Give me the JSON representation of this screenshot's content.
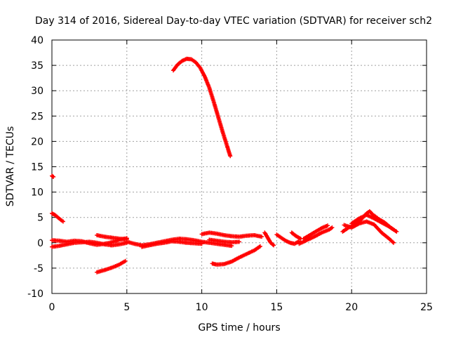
{
  "chart_data": {
    "type": "scatter",
    "title": "Day 314 of 2016, Sidereal Day-to-day VTEC variation (SDTVAR) for receiver sch2",
    "xlabel": "GPS time / hours",
    "ylabel": "SDTVAR / TECUs",
    "xlim": [
      0,
      25
    ],
    "ylim": [
      -10,
      40
    ],
    "x_ticks": [
      0,
      5,
      10,
      15,
      20,
      25
    ],
    "y_ticks": [
      -10,
      -5,
      0,
      5,
      10,
      15,
      20,
      25,
      30,
      35,
      40
    ],
    "grid": true,
    "marker": "+",
    "series_color": "#ff0000",
    "arcs": [
      {
        "name": "arc-01",
        "points": [
          [
            0.0,
            13.2
          ],
          [
            0.1,
            13.0
          ]
        ]
      },
      {
        "name": "arc-02",
        "points": [
          [
            0.0,
            5.8
          ],
          [
            0.2,
            5.5
          ],
          [
            0.4,
            5.0
          ],
          [
            0.6,
            4.5
          ],
          [
            0.75,
            4.2
          ]
        ]
      },
      {
        "name": "arc-03",
        "points": [
          [
            0.0,
            -0.8
          ],
          [
            0.5,
            -0.6
          ],
          [
            1.0,
            -0.3
          ],
          [
            1.5,
            0.0
          ],
          [
            2.0,
            0.1
          ],
          [
            2.5,
            0.2
          ],
          [
            3.0,
            0.0
          ],
          [
            3.5,
            -0.3
          ],
          [
            4.0,
            -0.5
          ],
          [
            4.5,
            -0.3
          ],
          [
            5.0,
            0.0
          ]
        ]
      },
      {
        "name": "arc-04",
        "points": [
          [
            0.0,
            0.5
          ],
          [
            0.5,
            0.4
          ],
          [
            1.0,
            0.2
          ],
          [
            1.5,
            0.4
          ],
          [
            2.0,
            0.3
          ],
          [
            2.5,
            -0.1
          ],
          [
            3.0,
            -0.4
          ],
          [
            3.5,
            -0.2
          ],
          [
            4.0,
            0.1
          ],
          [
            4.5,
            0.6
          ],
          [
            5.0,
            0.9
          ]
        ]
      },
      {
        "name": "arc-05",
        "points": [
          [
            3.0,
            1.5
          ],
          [
            3.5,
            1.2
          ],
          [
            4.0,
            1.0
          ],
          [
            4.5,
            0.8
          ],
          [
            5.0,
            0.7
          ]
        ]
      },
      {
        "name": "arc-06",
        "points": [
          [
            3.0,
            -5.8
          ],
          [
            3.5,
            -5.4
          ],
          [
            4.0,
            -4.9
          ],
          [
            4.5,
            -4.3
          ],
          [
            4.9,
            -3.6
          ]
        ]
      },
      {
        "name": "arc-07",
        "points": [
          [
            5.0,
            0.2
          ],
          [
            5.5,
            -0.2
          ],
          [
            6.0,
            -0.5
          ],
          [
            6.5,
            -0.3
          ],
          [
            7.0,
            0.0
          ],
          [
            7.5,
            0.3
          ],
          [
            8.0,
            0.6
          ],
          [
            8.5,
            0.8
          ],
          [
            9.0,
            0.7
          ],
          [
            9.5,
            0.5
          ],
          [
            10.0,
            0.2
          ],
          [
            10.5,
            0.0
          ],
          [
            11.0,
            -0.2
          ],
          [
            11.5,
            -0.4
          ],
          [
            12.0,
            -0.6
          ]
        ]
      },
      {
        "name": "arc-08",
        "points": [
          [
            6.0,
            -0.8
          ],
          [
            6.5,
            -0.5
          ],
          [
            7.0,
            -0.2
          ],
          [
            7.5,
            0.0
          ],
          [
            8.0,
            0.3
          ],
          [
            8.5,
            0.2
          ],
          [
            9.0,
            0.0
          ],
          [
            9.5,
            -0.1
          ],
          [
            10.0,
            -0.2
          ]
        ]
      },
      {
        "name": "arc-09",
        "points": [
          [
            8.1,
            34.0
          ],
          [
            8.4,
            35.2
          ],
          [
            8.7,
            35.9
          ],
          [
            9.0,
            36.3
          ],
          [
            9.3,
            36.2
          ],
          [
            9.6,
            35.6
          ],
          [
            9.9,
            34.5
          ],
          [
            10.2,
            32.8
          ],
          [
            10.5,
            30.6
          ],
          [
            10.8,
            27.8
          ],
          [
            11.1,
            24.8
          ],
          [
            11.4,
            21.8
          ],
          [
            11.7,
            19.0
          ],
          [
            11.9,
            17.1
          ]
        ]
      },
      {
        "name": "arc-10",
        "points": [
          [
            10.0,
            1.7
          ],
          [
            10.5,
            2.0
          ],
          [
            11.0,
            1.8
          ],
          [
            11.5,
            1.5
          ],
          [
            12.0,
            1.3
          ],
          [
            12.5,
            1.2
          ],
          [
            13.0,
            1.4
          ],
          [
            13.5,
            1.5
          ],
          [
            14.0,
            1.2
          ]
        ]
      },
      {
        "name": "arc-11",
        "points": [
          [
            10.7,
            -4.1
          ],
          [
            11.0,
            -4.3
          ],
          [
            11.5,
            -4.2
          ],
          [
            12.0,
            -3.7
          ],
          [
            12.5,
            -2.9
          ],
          [
            13.0,
            -2.2
          ],
          [
            13.5,
            -1.5
          ],
          [
            13.9,
            -0.7
          ]
        ]
      },
      {
        "name": "arc-12",
        "points": [
          [
            10.5,
            0.6
          ],
          [
            11.0,
            0.4
          ],
          [
            11.5,
            0.2
          ],
          [
            12.0,
            0.1
          ],
          [
            12.5,
            0.2
          ]
        ]
      },
      {
        "name": "arc-13",
        "points": [
          [
            14.2,
            2.0
          ],
          [
            14.4,
            1.0
          ],
          [
            14.6,
            0.0
          ],
          [
            14.8,
            -0.5
          ]
        ]
      },
      {
        "name": "arc-14",
        "points": [
          [
            15.0,
            1.6
          ],
          [
            15.3,
            1.0
          ],
          [
            15.6,
            0.4
          ],
          [
            15.9,
            0.0
          ],
          [
            16.2,
            -0.2
          ],
          [
            16.5,
            0.3
          ]
        ]
      },
      {
        "name": "arc-15",
        "points": [
          [
            16.0,
            2.0
          ],
          [
            16.3,
            1.3
          ],
          [
            16.6,
            0.8
          ]
        ]
      },
      {
        "name": "arc-16",
        "points": [
          [
            16.5,
            -0.2
          ],
          [
            17.0,
            0.5
          ],
          [
            17.5,
            1.2
          ],
          [
            18.0,
            2.0
          ],
          [
            18.5,
            2.6
          ],
          [
            18.7,
            3.0
          ]
        ]
      },
      {
        "name": "arc-17",
        "points": [
          [
            16.8,
            0.8
          ],
          [
            17.2,
            1.5
          ],
          [
            17.6,
            2.2
          ],
          [
            18.0,
            2.9
          ],
          [
            18.4,
            3.4
          ]
        ]
      },
      {
        "name": "arc-18",
        "points": [
          [
            19.4,
            2.2
          ],
          [
            19.8,
            3.0
          ],
          [
            20.2,
            3.5
          ],
          [
            20.6,
            4.5
          ],
          [
            21.0,
            5.8
          ],
          [
            21.2,
            6.2
          ],
          [
            21.4,
            5.6
          ],
          [
            21.8,
            4.7
          ],
          [
            22.2,
            4.0
          ],
          [
            22.6,
            3.0
          ],
          [
            23.0,
            2.2
          ]
        ]
      },
      {
        "name": "arc-19",
        "points": [
          [
            19.5,
            3.5
          ],
          [
            20.0,
            3.0
          ],
          [
            20.5,
            3.8
          ],
          [
            21.0,
            4.2
          ],
          [
            21.5,
            3.6
          ],
          [
            22.0,
            2.0
          ],
          [
            22.5,
            0.8
          ],
          [
            22.8,
            0.0
          ]
        ]
      },
      {
        "name": "arc-20",
        "points": [
          [
            20.0,
            3.8
          ],
          [
            20.5,
            4.8
          ],
          [
            21.0,
            5.5
          ],
          [
            21.5,
            4.8
          ],
          [
            22.0,
            4.0
          ],
          [
            22.5,
            3.2
          ],
          [
            22.8,
            2.6
          ]
        ]
      }
    ]
  }
}
